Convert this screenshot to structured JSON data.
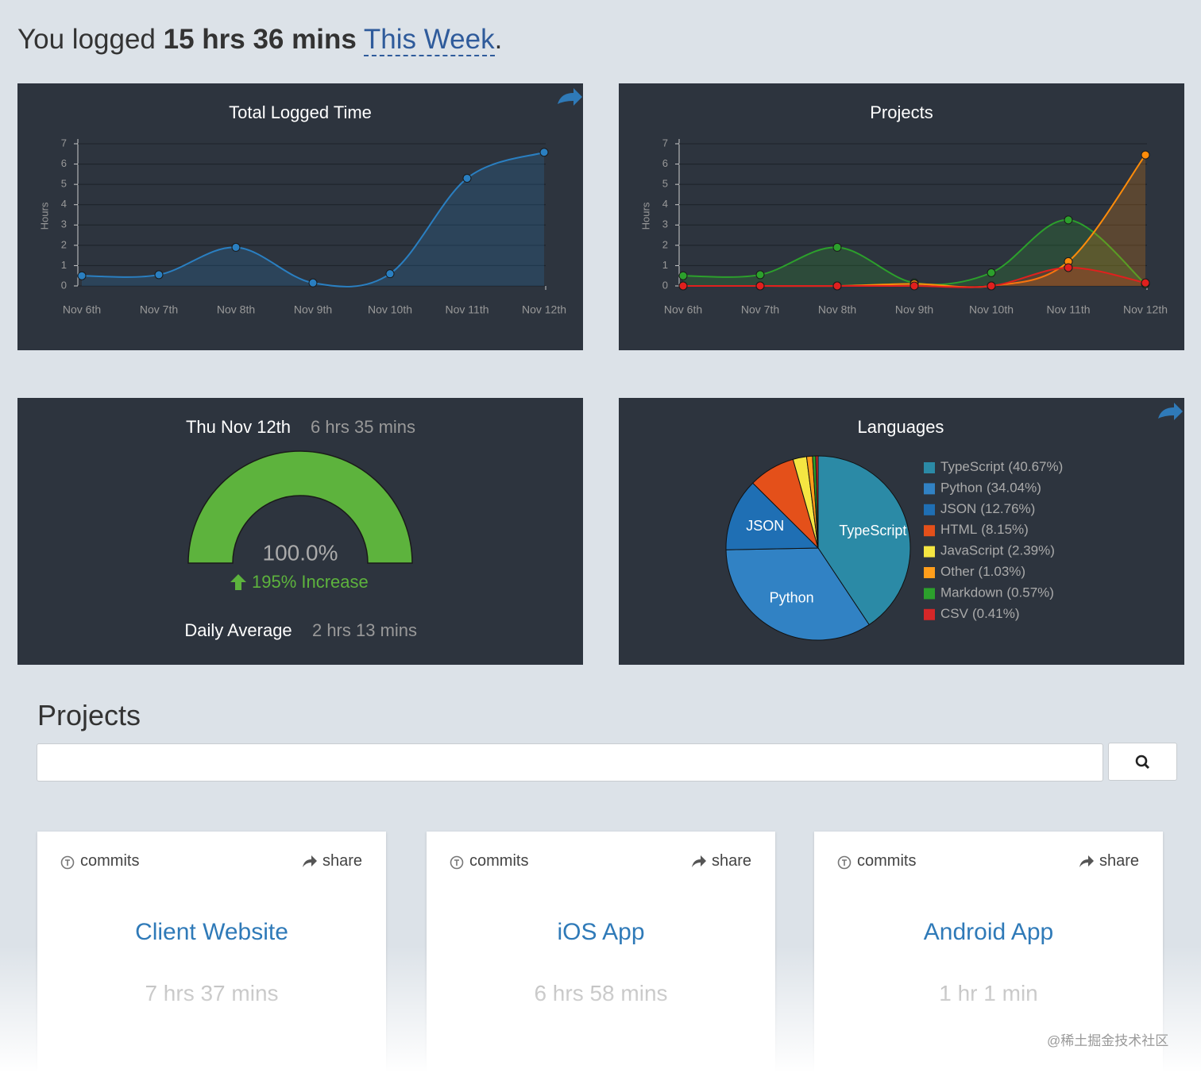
{
  "header": {
    "prefix": "You logged",
    "total": "15 hrs 36 mins",
    "period": "This Week",
    "suffix": "."
  },
  "chart_data": [
    {
      "type": "line",
      "title": "Total Logged Time",
      "y_label": "Hours",
      "categories": [
        "Nov 6th",
        "Nov 7th",
        "Nov 8th",
        "Nov 9th",
        "Nov 10th",
        "Nov 11th",
        "Nov 12th"
      ],
      "series": [
        {
          "color": "#2a7fc1",
          "values": [
            0.5,
            0.55,
            1.9,
            0.15,
            0.6,
            5.3,
            6.58
          ]
        }
      ],
      "ylim": [
        0,
        7
      ],
      "yticks": [
        0,
        1,
        2,
        3,
        4,
        5,
        6,
        7
      ]
    },
    {
      "type": "line",
      "title": "Projects",
      "y_label": "Hours",
      "categories": [
        "Nov 6th",
        "Nov 7th",
        "Nov 8th",
        "Nov 9th",
        "Nov 10th",
        "Nov 11th",
        "Nov 12th"
      ],
      "series": [
        {
          "color": "#2ca02c",
          "values": [
            0.5,
            0.55,
            1.9,
            0.15,
            0.65,
            3.25,
            0.1
          ]
        },
        {
          "color": "#ff8c0a",
          "values": [
            0,
            0,
            0,
            0.1,
            0,
            1.2,
            6.45
          ]
        },
        {
          "color": "#e0201e",
          "values": [
            0,
            0,
            0,
            0,
            0,
            0.9,
            0.15
          ]
        }
      ],
      "ylim": [
        0,
        7
      ],
      "yticks": [
        0,
        1,
        2,
        3,
        4,
        5,
        6,
        7
      ]
    },
    {
      "type": "gauge",
      "title": "Thu Nov 12th",
      "subtitle": "6 hrs 35 mins",
      "values": [
        100
      ],
      "value_labels": [
        "100.0%"
      ],
      "ylim": [
        0,
        100
      ],
      "color": "#5db33d",
      "annotation": "195% Increase",
      "footer_label": "Daily Average",
      "footer_value": "2 hrs 13 mins"
    },
    {
      "type": "pie",
      "title": "Languages",
      "categories": [
        "TypeScript",
        "Python",
        "JSON",
        "HTML",
        "JavaScript",
        "Other",
        "Markdown",
        "CSV"
      ],
      "values": [
        40.67,
        34.04,
        12.76,
        8.15,
        2.39,
        1.03,
        0.57,
        0.41
      ],
      "value_labels": [
        "(40.67%)",
        "(34.04%)",
        "(12.76%)",
        "(8.15%)",
        "(2.39%)",
        "(1.03%)",
        "(0.57%)",
        "(0.41%)"
      ],
      "colors": [
        "#2b8aa6",
        "#3182c4",
        "#1f6fb4",
        "#e4501a",
        "#f5e642",
        "#ff9e1b",
        "#2ca02c",
        "#d62728"
      ]
    }
  ],
  "projects": {
    "title": "Projects",
    "cards": [
      {
        "commits": "commits",
        "share": "share",
        "name": "Client Website",
        "time": "7 hrs 37 mins"
      },
      {
        "commits": "commits",
        "share": "share",
        "name": "iOS App",
        "time": "6 hrs 58 mins"
      },
      {
        "commits": "commits",
        "share": "share",
        "name": "Android App",
        "time": "1 hr 1 min"
      }
    ]
  },
  "watermark": "@稀土掘金技术社区"
}
